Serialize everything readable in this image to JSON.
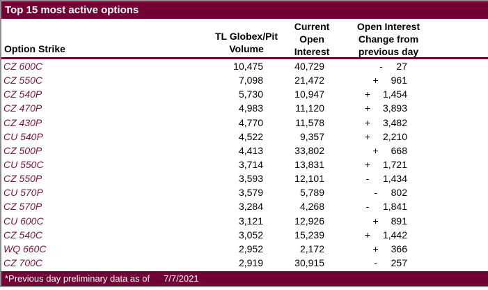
{
  "title": "Top 15 most active options",
  "table": {
    "col1_header": "Option Strike",
    "col2_header_lines": [
      "TL Globex/Pit",
      "Volume"
    ],
    "col3_header_lines": [
      "Current",
      "Open",
      "Interest"
    ],
    "col4_header_lines": [
      "Open Interest",
      "Change from",
      "previous day"
    ],
    "rows": [
      {
        "strike": "CZ 600C",
        "volume": "10,475",
        "open_interest": "40,729",
        "change_sign": "-",
        "change": "27"
      },
      {
        "strike": "CZ 550C",
        "volume": "7,098",
        "open_interest": "21,472",
        "change_sign": "+",
        "change": "961"
      },
      {
        "strike": "CZ 540P",
        "volume": "5,730",
        "open_interest": "10,947",
        "change_sign": "+",
        "change": "1,454"
      },
      {
        "strike": "CZ 470P",
        "volume": "4,983",
        "open_interest": "11,120",
        "change_sign": "+",
        "change": "3,893"
      },
      {
        "strike": "CZ 430P",
        "volume": "4,770",
        "open_interest": "11,578",
        "change_sign": "+",
        "change": "3,482"
      },
      {
        "strike": "CU 540P",
        "volume": "4,522",
        "open_interest": "9,357",
        "change_sign": "+",
        "change": "2,210"
      },
      {
        "strike": "CZ 500P",
        "volume": "4,413",
        "open_interest": "33,802",
        "change_sign": "+",
        "change": "668"
      },
      {
        "strike": "CU 550C",
        "volume": "3,714",
        "open_interest": "13,831",
        "change_sign": "+",
        "change": "1,721"
      },
      {
        "strike": "CZ 550P",
        "volume": "3,593",
        "open_interest": "12,101",
        "change_sign": "-",
        "change": "1,434"
      },
      {
        "strike": "CU 570P",
        "volume": "3,579",
        "open_interest": "5,789",
        "change_sign": "-",
        "change": "802"
      },
      {
        "strike": "CZ 570P",
        "volume": "3,284",
        "open_interest": "4,268",
        "change_sign": "-",
        "change": "1,841"
      },
      {
        "strike": "CU 600C",
        "volume": "3,121",
        "open_interest": "12,926",
        "change_sign": "+",
        "change": "891"
      },
      {
        "strike": "CZ 540C",
        "volume": "3,052",
        "open_interest": "15,239",
        "change_sign": "+",
        "change": "1,442"
      },
      {
        "strike": "WQ 660C",
        "volume": "2,952",
        "open_interest": "2,172",
        "change_sign": "+",
        "change": "366"
      },
      {
        "strike": "CZ 700C",
        "volume": "2,919",
        "open_interest": "30,915",
        "change_sign": "-",
        "change": "257"
      }
    ]
  },
  "footer": {
    "note": "*Previous day preliminary data as of",
    "date": "7/7/2021"
  },
  "colors": {
    "maroon": "#730234",
    "strike_text": "#7b1238",
    "border_gray": "#8f8f8f"
  }
}
